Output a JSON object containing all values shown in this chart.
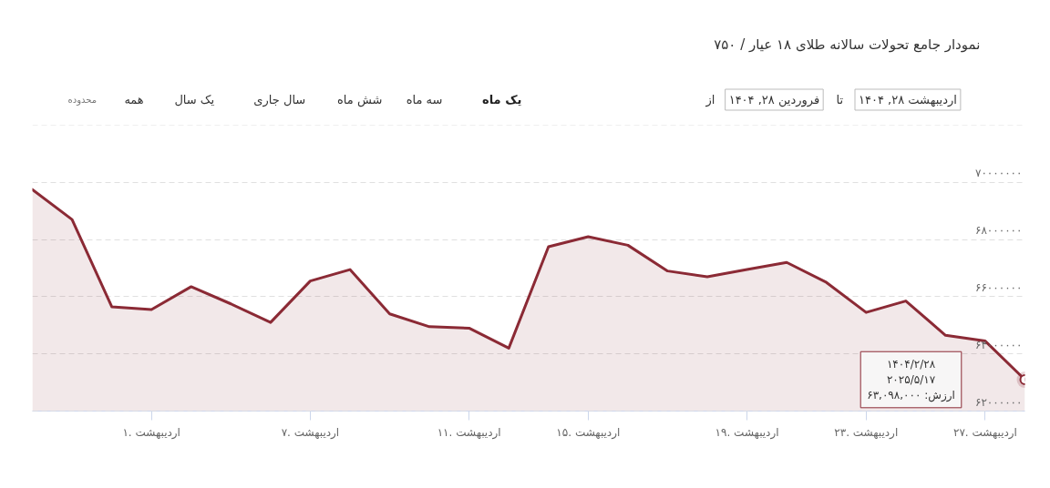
{
  "chart_data": {
    "type": "area",
    "title": "نمودار جامع تحولات سالانه طلای ۱۸ عیار / ۷۵۰",
    "categories": [
      null,
      null,
      null,
      "۱. اردیبهشت",
      null,
      null,
      null,
      "۷. اردیبهشت",
      null,
      null,
      null,
      "۱۱. اردیبهشت",
      null,
      null,
      "۱۵. اردیبهشت",
      null,
      null,
      null,
      "۱۹. اردیبهشت",
      null,
      null,
      "۲۳. اردیبهشت",
      null,
      null,
      "۲۷. اردیبهشت",
      null
    ],
    "series": [
      {
        "color": "#8b2a35",
        "values": [
          69750000,
          68700000,
          65650000,
          65550000,
          66350000,
          65750000,
          65100000,
          66550000,
          66950000,
          65400000,
          64950000,
          64900000,
          64200000,
          67750000,
          68100000,
          67800000,
          66900000,
          66700000,
          66950000,
          67200000,
          66500000,
          65450000,
          65850000,
          64650000,
          64450000,
          63098000
        ]
      }
    ],
    "ylim": [
      62000000,
      72000000
    ],
    "yticks": [
      {
        "value": 62000000,
        "label": "۶۲۰۰۰۰۰۰"
      },
      {
        "value": 64000000,
        "label": "۶۴۰۰۰۰۰۰"
      },
      {
        "value": 66000000,
        "label": "۶۶۰۰۰۰۰۰"
      },
      {
        "value": 68000000,
        "label": "۶۸۰۰۰۰۰۰"
      },
      {
        "value": 70000000,
        "label": "۷۰۰۰۰۰۰۰"
      },
      {
        "value": 72000000,
        "label": null
      }
    ],
    "grid": "y",
    "annotations": [
      "محدوده",
      "همه",
      "یک سال",
      "سال جاری",
      "شش ماه",
      "سه ماه",
      "یک ماه",
      "از",
      "فروردین ۲۸, ۱۴۰۴",
      "تا",
      "اردیبهشت ۲۸, ۱۴۰۴",
      "۱۴۰۴/۲/۲۸\n۲۰۲۵/۵/۱۷\nارزش: ۶۳,۰۹۸,۰۰۰"
    ]
  }
}
